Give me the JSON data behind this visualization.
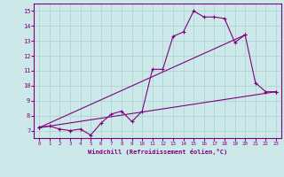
{
  "xlabel": "Windchill (Refroidissement éolien,°C)",
  "bg_color": "#cce8e8",
  "line_color": "#800080",
  "grid_color": "#a8d0d0",
  "xlim": [
    -0.5,
    23.5
  ],
  "ylim": [
    6.5,
    15.5
  ],
  "xticks": [
    0,
    1,
    2,
    3,
    4,
    5,
    6,
    7,
    8,
    9,
    10,
    11,
    12,
    13,
    14,
    15,
    16,
    17,
    18,
    19,
    20,
    21,
    22,
    23
  ],
  "yticks": [
    7,
    8,
    9,
    10,
    11,
    12,
    13,
    14,
    15
  ],
  "series1_x": [
    0,
    1,
    2,
    3,
    4,
    5,
    6,
    7,
    8,
    9,
    10,
    11,
    12,
    13,
    14,
    15,
    16,
    17,
    18,
    19,
    20,
    21,
    22,
    23
  ],
  "series1_y": [
    7.2,
    7.3,
    7.1,
    7.0,
    7.1,
    6.7,
    7.5,
    8.1,
    8.3,
    7.6,
    8.3,
    11.1,
    11.1,
    13.3,
    13.6,
    15.0,
    14.6,
    14.6,
    14.5,
    12.9,
    13.4,
    10.2,
    9.6,
    9.6
  ],
  "series2_x": [
    0,
    23
  ],
  "series2_y": [
    7.2,
    9.6
  ],
  "series3_x": [
    0,
    20
  ],
  "series3_y": [
    7.2,
    13.4
  ]
}
